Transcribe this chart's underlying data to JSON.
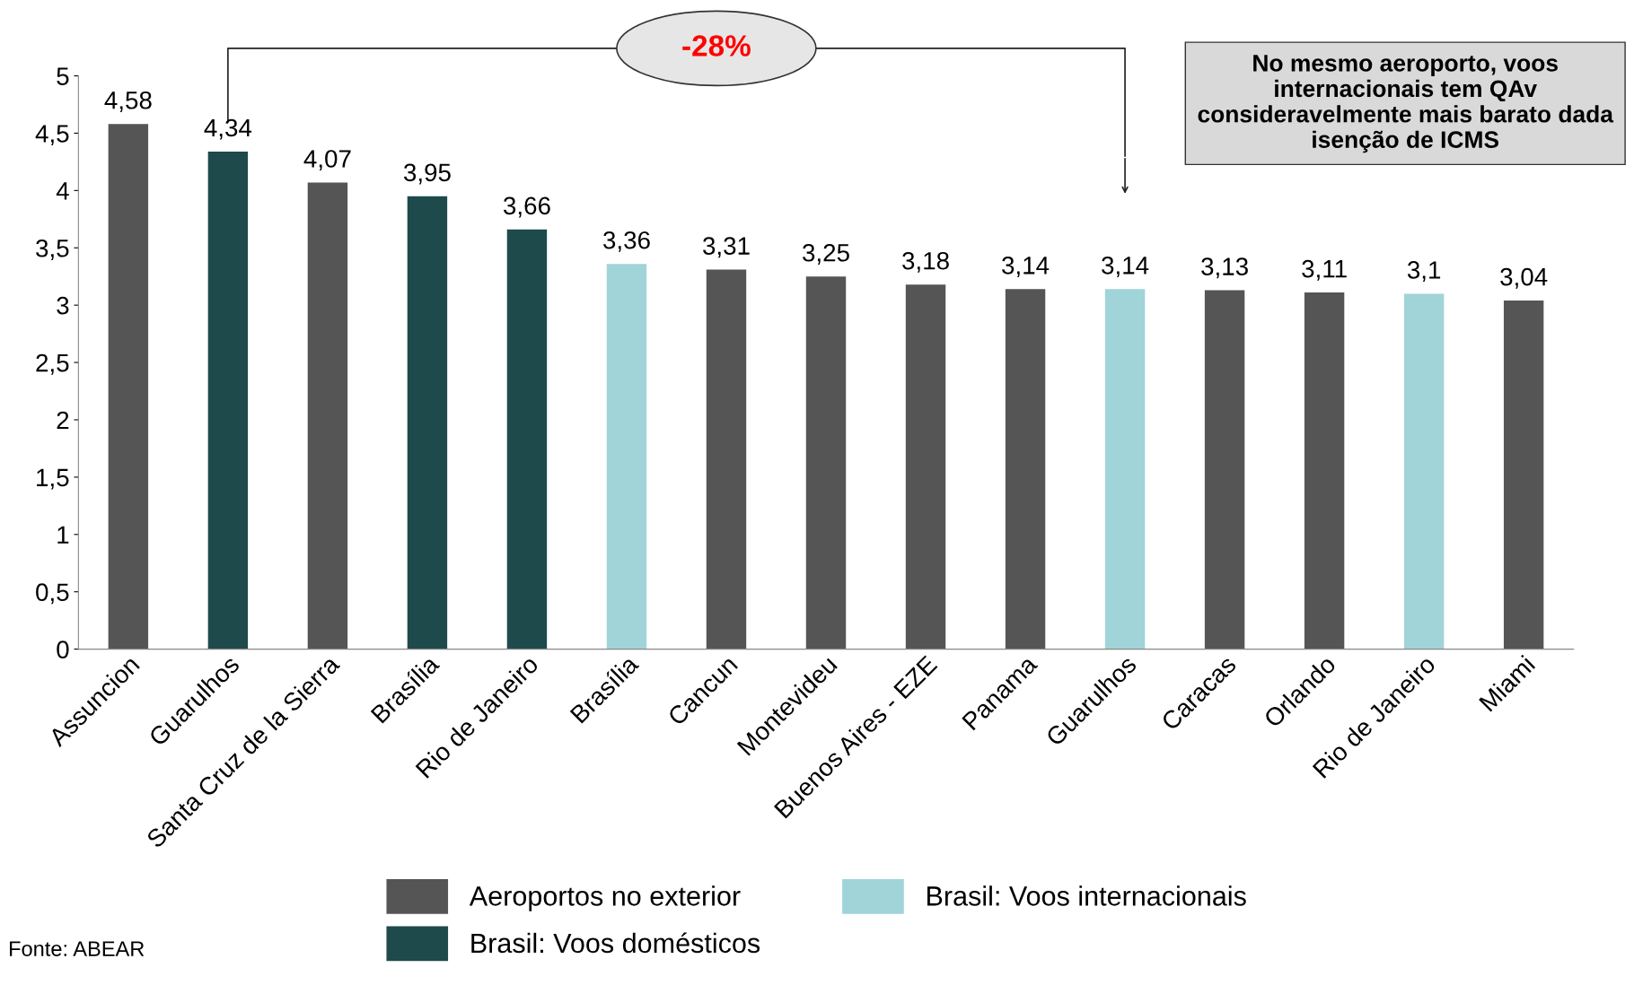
{
  "chart_data": {
    "type": "bar",
    "categories": [
      "Assuncion",
      "Guarulhos",
      "Santa Cruz de la Sierra",
      "Brasília",
      "Rio de Janeiro",
      "Brasília",
      "Cancun",
      "Montevideu",
      "Buenos Aires - EZE",
      "Panama",
      "Guarulhos",
      "Caracas",
      "Orlando",
      "Rio de Janeiro",
      "Miami"
    ],
    "series": [
      {
        "name": "Aeroportos no exterior",
        "color": "#555555",
        "values": [
          4.58,
          null,
          4.07,
          null,
          null,
          null,
          3.31,
          3.25,
          3.18,
          3.14,
          null,
          3.13,
          3.11,
          null,
          3.04
        ],
        "value_labels": [
          "4,58",
          null,
          "4,07",
          null,
          null,
          null,
          "3,31",
          "3,25",
          "3,18",
          "3,14",
          null,
          "3,13",
          "3,11",
          null,
          "3,04"
        ]
      },
      {
        "name": "Brasil: Voos domésticos",
        "color": "#1f4a4c",
        "values": [
          null,
          4.34,
          null,
          3.95,
          3.66,
          null,
          null,
          null,
          null,
          null,
          null,
          null,
          null,
          null,
          null
        ],
        "value_labels": [
          null,
          "4,34",
          null,
          "3,95",
          "3,66",
          null,
          null,
          null,
          null,
          null,
          null,
          null,
          null,
          null,
          null
        ]
      },
      {
        "name": "Brasil: Voos internacionais",
        "color": "#a0d4d8",
        "values": [
          null,
          null,
          null,
          null,
          null,
          3.36,
          null,
          null,
          null,
          null,
          3.14,
          null,
          null,
          3.1,
          null
        ],
        "value_labels": [
          null,
          null,
          null,
          null,
          null,
          "3,36",
          null,
          null,
          null,
          null,
          "3,14",
          null,
          null,
          "3,1",
          null
        ]
      }
    ],
    "ylim": [
      0,
      5
    ],
    "yticks": [
      0,
      {
        "value": 0.5,
        "label": "0,5"
      },
      1,
      {
        "value": 1.5,
        "label": "1,5"
      },
      2,
      {
        "value": 2.5,
        "label": "2,5"
      },
      3,
      {
        "value": 3.5,
        "label": "3,5"
      },
      4,
      {
        "value": 4.5,
        "label": "4,5"
      },
      5
    ],
    "grid": false,
    "legend": "bottom",
    "annotations": [
      "-28%",
      "No mesmo aeroporto, voos internacionais tem QAv consideravelmente mais barato dada isenção de ICMS",
      "Fonte: ABEAR"
    ]
  }
}
